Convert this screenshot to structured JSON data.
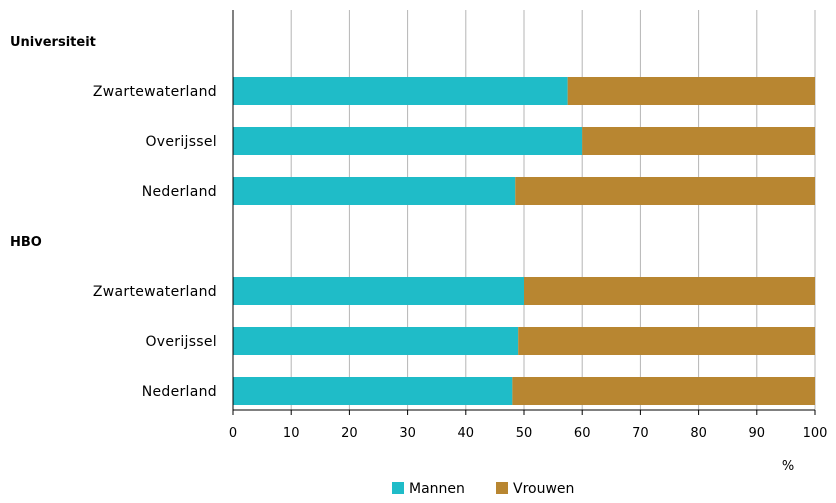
{
  "chart_data": {
    "type": "bar",
    "orientation": "horizontal",
    "stacked": true,
    "groups": [
      {
        "label": "Universiteit",
        "categories": [
          "Zwartewaterland",
          "Overijssel",
          "Nederland"
        ],
        "series": [
          {
            "name": "Mannen",
            "values": [
              57.5,
              60,
              48.5
            ]
          },
          {
            "name": "Vrouwen",
            "values": [
              42.5,
              40,
              51.5
            ]
          }
        ]
      },
      {
        "label": "HBO",
        "categories": [
          "Zwartewaterland",
          "Overijssel",
          "Nederland"
        ],
        "series": [
          {
            "name": "Mannen",
            "values": [
              50,
              49,
              48
            ]
          },
          {
            "name": "Vrouwen",
            "values": [
              50,
              51,
              52
            ]
          }
        ]
      }
    ],
    "xlim": [
      0,
      100
    ],
    "xticks": [
      0,
      10,
      20,
      30,
      40,
      50,
      60,
      70,
      80,
      90,
      100
    ],
    "xunit": "%",
    "grid": true,
    "legend_position": "bottom",
    "colors": {
      "Mannen": "#1fbcc8",
      "Vrouwen": "#b88631"
    }
  }
}
